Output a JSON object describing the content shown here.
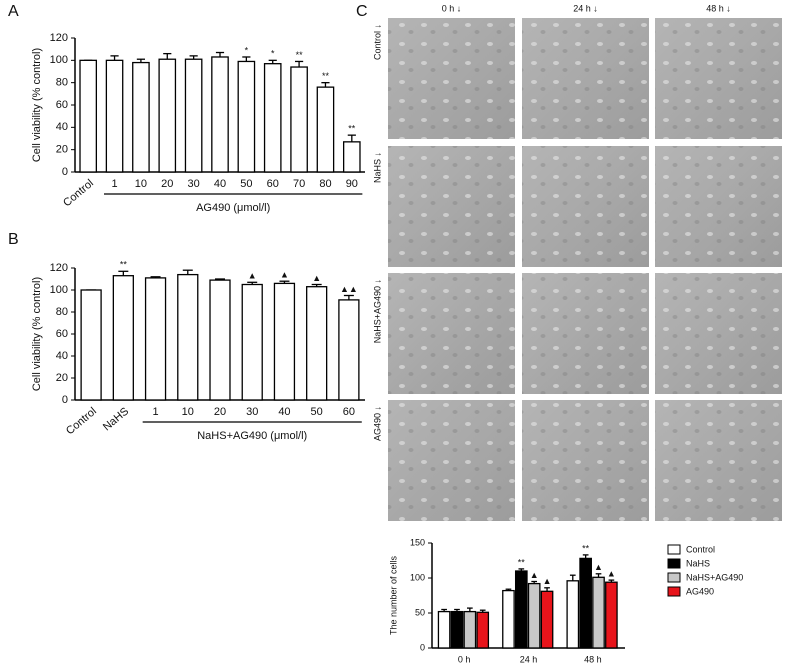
{
  "chart_data": [
    {
      "type": "bar",
      "panel": "A",
      "ylabel": "Cell viability (% control)",
      "group_label": "AG490 (μmol/l)",
      "categories": [
        "Control",
        "1",
        "10",
        "20",
        "30",
        "40",
        "50",
        "60",
        "70",
        "80",
        "90"
      ],
      "values": [
        100,
        100,
        98,
        101,
        101,
        103,
        99,
        97,
        94,
        76,
        27
      ],
      "errors": [
        0,
        4,
        3,
        5,
        3,
        4,
        4,
        3,
        5,
        4,
        6
      ],
      "annotations": [
        null,
        null,
        null,
        null,
        null,
        null,
        "*",
        "*",
        "**",
        "**",
        "**"
      ],
      "color": "#ffffff",
      "ylim": [
        0,
        120
      ],
      "yticks": [
        0,
        20,
        40,
        60,
        80,
        100,
        120
      ]
    },
    {
      "type": "bar",
      "panel": "B",
      "ylabel": "Cell viability (% control)",
      "group_label": "NaHS+AG490 (μmol/l)",
      "categories": [
        "Control",
        "NaHS",
        "1",
        "10",
        "20",
        "30",
        "40",
        "50",
        "60"
      ],
      "values": [
        100,
        113,
        111,
        114,
        109,
        105,
        106,
        103,
        91
      ],
      "errors": [
        0,
        4,
        1,
        4,
        1,
        2,
        2,
        2,
        4
      ],
      "annotations": [
        null,
        "**",
        null,
        null,
        null,
        "▲",
        "▲",
        "▲",
        "▲▲"
      ],
      "color": "#ffffff",
      "ylim": [
        0,
        120
      ],
      "yticks": [
        0,
        20,
        40,
        60,
        80,
        100,
        120
      ]
    },
    {
      "type": "grouped_bar",
      "ylabel": "The number of cells",
      "legend": "right",
      "categories": [
        "0 h",
        "24 h",
        "48 h"
      ],
      "series": [
        {
          "name": "Control",
          "color": "#ffffff",
          "values": [
            52,
            82,
            96
          ],
          "errors": [
            3,
            2,
            8
          ],
          "annotations": [
            null,
            null,
            null
          ]
        },
        {
          "name": "NaHS",
          "color": "#000000",
          "values": [
            52,
            110,
            128
          ],
          "errors": [
            3,
            3,
            5
          ],
          "annotations": [
            null,
            "**",
            "**"
          ]
        },
        {
          "name": "NaHS+AG490",
          "color": "#c8c8c8",
          "values": [
            52,
            92,
            101
          ],
          "errors": [
            5,
            3,
            5
          ],
          "annotations": [
            null,
            "▲",
            "▲"
          ]
        },
        {
          "name": "AG490",
          "color": "#e8141b",
          "values": [
            51,
            81,
            94
          ],
          "errors": [
            3,
            5,
            3
          ],
          "annotations": [
            null,
            "▲",
            "▲"
          ]
        }
      ],
      "ylim": [
        0,
        150
      ],
      "yticks": [
        0,
        50,
        100,
        150
      ]
    }
  ],
  "micrographs": {
    "label": "C",
    "columns": [
      "0 h ↓",
      "24 h ↓",
      "48 h ↓"
    ],
    "rows": [
      "Control ↓",
      "NaHS ↓",
      "NaHS+AG490 ↓",
      "AG490 ↓"
    ]
  }
}
